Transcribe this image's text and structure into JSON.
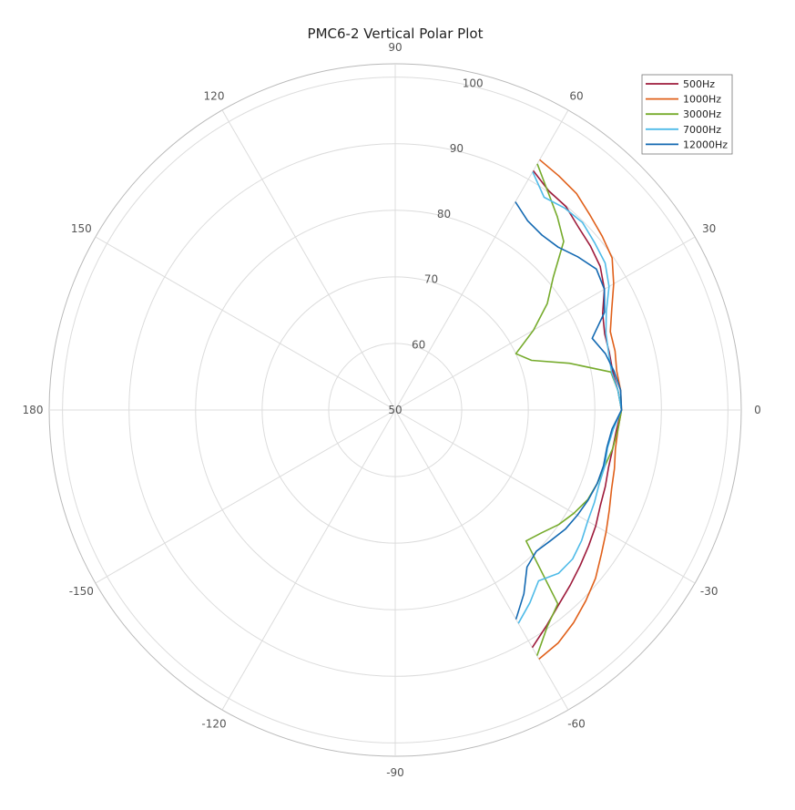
{
  "chart_data": {
    "type": "line",
    "subtype": "polar",
    "title": "PMC6-2 Vertical Polar Plot",
    "angle_unit": "degrees",
    "angle_ticks": [
      "0",
      "30",
      "60",
      "90",
      "120",
      "150",
      "180",
      "-150",
      "-120",
      "-90",
      "-60",
      "-30"
    ],
    "angle_tick_values": [
      0,
      30,
      60,
      90,
      120,
      150,
      180,
      -150,
      -120,
      -90,
      -60,
      -30
    ],
    "radial_ticks": [
      "50",
      "60",
      "70",
      "80",
      "90",
      "100"
    ],
    "radial_tick_values": [
      50,
      60,
      70,
      80,
      90,
      100
    ],
    "rlim": [
      50,
      102
    ],
    "grid": true,
    "legend_position": "top-right",
    "angles": [
      -60,
      -55,
      -50,
      -45,
      -40,
      -35,
      -30,
      -25,
      -20,
      -15,
      -10,
      -5,
      0,
      5,
      10,
      15,
      20,
      25,
      30,
      35,
      40,
      45,
      50,
      55,
      60
    ],
    "series": [
      {
        "name": "500Hz",
        "color": "#9e1b3b",
        "values": [
          91.2,
          89.6,
          88.2,
          87.2,
          86.3,
          85.5,
          84.8,
          84.0,
          83.6,
          83.2,
          83.2,
          83.4,
          84.0,
          83.6,
          83.2,
          83.3,
          83.5,
          84.4,
          86.3,
          87.6,
          88.3,
          88.9,
          89.9,
          90.2,
          91.5
        ]
      },
      {
        "name": "1000Hz",
        "color": "#e0601a",
        "values": [
          93.2,
          92.7,
          91.7,
          90.5,
          89.3,
          87.8,
          86.6,
          85.5,
          84.6,
          84.1,
          83.6,
          83.6,
          84.0,
          84.0,
          83.8,
          84.2,
          84.4,
          85.9,
          87.9,
          89.8,
          90.6,
          91.4,
          92.4,
          92.9,
          93.4
        ]
      },
      {
        "name": "3000Hz",
        "color": "#76ab2c",
        "values": [
          92.6,
          89.8,
          88.0,
          77.8,
          78.7,
          80.0,
          81.0,
          81.9,
          82.3,
          82.6,
          83.2,
          83.6,
          84.0,
          83.6,
          82.9,
          77.1,
          71.8,
          70.0,
          74.0,
          77.9,
          81.0,
          85.8,
          87.9,
          90.0,
          92.7
        ]
      },
      {
        "name": "7000Hz",
        "color": "#4fbbe8",
        "values": [
          87.0,
          85.3,
          83.5,
          84.7,
          84.8,
          84.2,
          83.4,
          83.0,
          82.6,
          82.6,
          82.4,
          82.9,
          84.0,
          83.6,
          83.0,
          83.2,
          83.7,
          85.0,
          87.1,
          88.5,
          89.1,
          89.8,
          89.6,
          89.0,
          91.3
        ]
      },
      {
        "name": "12000Hz",
        "color": "#1369b2",
        "values": [
          86.3,
          83.7,
          80.8,
          80.0,
          80.5,
          81.2,
          81.6,
          82.0,
          82.3,
          82.4,
          82.3,
          82.7,
          84.0,
          84.0,
          83.4,
          82.7,
          81.5,
          84.7,
          86.3,
          86.9,
          85.8,
          84.6,
          84.3,
          84.7,
          86.1
        ]
      }
    ]
  }
}
